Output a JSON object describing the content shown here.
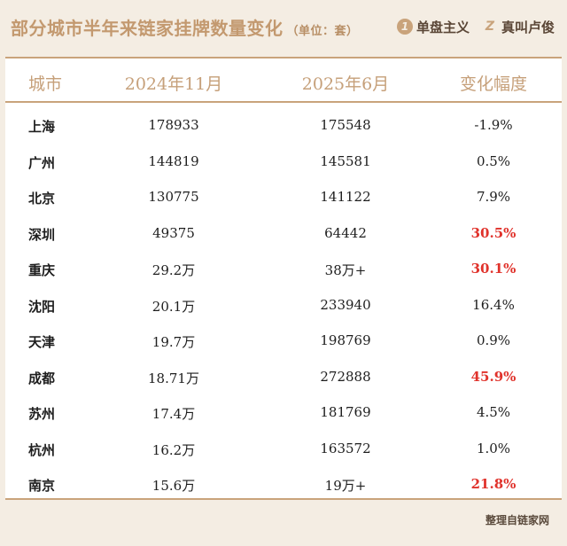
{
  "header": {
    "title": "部分城市半年来链家挂牌数量变化",
    "unit": "（单位：套）",
    "brand1": {
      "badge": "1",
      "label": "单盘主义"
    },
    "brand2": {
      "badge": "Z",
      "label": "真叫卢俊"
    }
  },
  "table": {
    "columns": [
      "城市",
      "2024年11月",
      "2025年6月",
      "变化幅度"
    ],
    "rows": [
      {
        "city": "上海",
        "nov2024": "178933",
        "jun2025": "175548",
        "change": "-1.9%",
        "highlight": false
      },
      {
        "city": "广州",
        "nov2024": "144819",
        "jun2025": "145581",
        "change": "0.5%",
        "highlight": false
      },
      {
        "city": "北京",
        "nov2024": "130775",
        "jun2025": "141122",
        "change": "7.9%",
        "highlight": false
      },
      {
        "city": "深圳",
        "nov2024": "49375",
        "jun2025": "64442",
        "change": "30.5%",
        "highlight": true
      },
      {
        "city": "重庆",
        "nov2024": "29.2万",
        "jun2025": "38万+",
        "change": "30.1%",
        "highlight": true
      },
      {
        "city": "沈阳",
        "nov2024": "20.1万",
        "jun2025": "233940",
        "change": "16.4%",
        "highlight": false
      },
      {
        "city": "天津",
        "nov2024": "19.7万",
        "jun2025": "198769",
        "change": "0.9%",
        "highlight": false
      },
      {
        "city": "成都",
        "nov2024": "18.71万",
        "jun2025": "272888",
        "change": "45.9%",
        "highlight": true
      },
      {
        "city": "苏州",
        "nov2024": "17.4万",
        "jun2025": "181769",
        "change": "4.5%",
        "highlight": false
      },
      {
        "city": "杭州",
        "nov2024": "16.2万",
        "jun2025": "163572",
        "change": "1.0%",
        "highlight": false
      },
      {
        "city": "南京",
        "nov2024": "15.6万",
        "jun2025": "19万+",
        "change": "21.8%",
        "highlight": true
      }
    ]
  },
  "footer": {
    "source": "整理自链家网"
  },
  "colors": {
    "accent": "#c9a37b",
    "highlight": "#e0322b",
    "background": "#f4ede3"
  }
}
